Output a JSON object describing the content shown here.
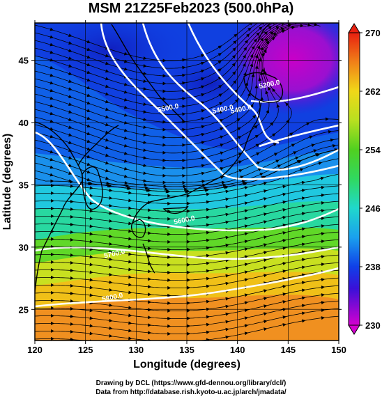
{
  "title": "MSM 21Z25Feb2023 (500.0hPa)",
  "credits": [
    "Drawing by DCL (https://www.gfd-dennou.org/library/dcl/)",
    "Data from http://database.rish.kyoto-u.ac.jp/arch/jmadata/"
  ],
  "chart_data": {
    "type": "heatmap",
    "xlabel": "Longitude (degrees)",
    "ylabel": "Latitude  (degrees)",
    "xlim": [
      120,
      150
    ],
    "ylim": [
      22.5,
      48
    ],
    "x_ticks": [
      120,
      125,
      130,
      135,
      140,
      145,
      150
    ],
    "y_ticks": [
      25,
      30,
      35,
      40,
      45
    ],
    "colorbar": {
      "range": [
        230,
        270
      ],
      "ticks": [
        230,
        238,
        246,
        254,
        262,
        270
      ],
      "stops": [
        {
          "value": 230,
          "color": "#d400d0"
        },
        {
          "value": 235,
          "color": "#3a10d8"
        },
        {
          "value": 238,
          "color": "#1040e8"
        },
        {
          "value": 242,
          "color": "#1aa0ee"
        },
        {
          "value": 246,
          "color": "#20d8cc"
        },
        {
          "value": 250,
          "color": "#30d860"
        },
        {
          "value": 254,
          "color": "#50d020"
        },
        {
          "value": 258,
          "color": "#b8e020"
        },
        {
          "value": 262,
          "color": "#f0d818"
        },
        {
          "value": 266,
          "color": "#f08018"
        },
        {
          "value": 270,
          "color": "#e82010"
        }
      ]
    },
    "contour_labels": [
      {
        "text": "5200.0",
        "lon": 143.2,
        "lat": 42.9
      },
      {
        "text": "5400.0",
        "lon": 140.4,
        "lat": 40.9
      },
      {
        "text": "5500.0",
        "lon": 133.2,
        "lat": 41.0
      },
      {
        "text": "5400.0",
        "lon": 138.6,
        "lat": 40.9
      },
      {
        "text": "5600.0",
        "lon": 134.8,
        "lat": 32.0
      },
      {
        "text": "5700.0",
        "lon": 127.9,
        "lat": 29.3
      },
      {
        "text": "5800.0",
        "lon": 127.7,
        "lat": 25.8
      }
    ],
    "grid": true,
    "variable": "temperature (K) shading, geopotential height contours, wind streamlines"
  }
}
